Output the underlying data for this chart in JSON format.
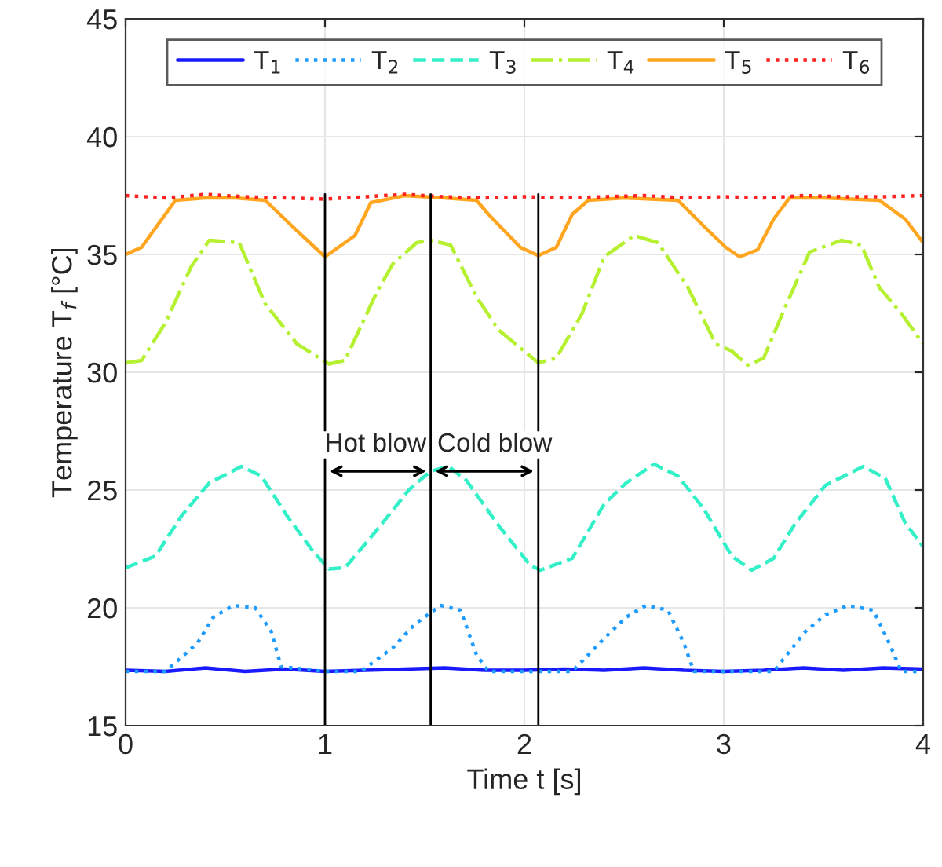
{
  "chart_data": {
    "type": "line",
    "xlabel": "Time t [s]",
    "ylabel": "Temperature T$_{f}$ [°C]",
    "xlim": [
      0,
      4
    ],
    "ylim": [
      15,
      45
    ],
    "xticks": [
      0,
      1,
      2,
      3,
      4
    ],
    "yticks": [
      15,
      20,
      25,
      30,
      35,
      40,
      45
    ],
    "grid": true,
    "legend": "top",
    "marker": "none",
    "series": [
      {
        "name": "T$_{1}$",
        "color": "#1a1aff",
        "line_style": "solid",
        "x": [
          0,
          0.2,
          0.4,
          0.6,
          0.8,
          1,
          1.2,
          1.4,
          1.6,
          1.8,
          2,
          2.2,
          2.4,
          2.6,
          2.8,
          3,
          3.2,
          3.4,
          3.6,
          3.8,
          4
        ],
        "values": [
          17.35,
          17.3,
          17.45,
          17.3,
          17.4,
          17.3,
          17.35,
          17.4,
          17.45,
          17.35,
          17.35,
          17.4,
          17.35,
          17.45,
          17.35,
          17.3,
          17.35,
          17.45,
          17.35,
          17.45,
          17.4
        ]
      },
      {
        "name": "T$_{2}$",
        "color": "#1e9bff",
        "line_style": "dotted",
        "x": [
          0,
          0.2,
          0.36,
          0.44,
          0.54,
          0.65,
          0.73,
          0.78,
          1,
          1.18,
          1.34,
          1.45,
          1.58,
          1.68,
          1.76,
          1.82,
          2.0,
          2.24,
          2.4,
          2.51,
          2.61,
          2.72,
          2.8,
          2.85,
          3.0,
          3.25,
          3.41,
          3.51,
          3.62,
          3.75,
          3.83,
          3.89,
          4
        ],
        "values": [
          17.3,
          17.3,
          18.5,
          19.6,
          20.1,
          20.0,
          19.0,
          17.5,
          17.3,
          17.3,
          18.3,
          19.3,
          20.1,
          19.9,
          18.0,
          17.3,
          17.3,
          17.3,
          18.7,
          19.6,
          20.1,
          19.9,
          18.5,
          17.3,
          17.3,
          17.3,
          19.0,
          19.7,
          20.1,
          19.9,
          18.5,
          17.3,
          17.3
        ]
      },
      {
        "name": "T$_{3}$",
        "color": "#33f0c8",
        "line_style": "dashed",
        "x": [
          0,
          0.15,
          0.28,
          0.42,
          0.58,
          0.68,
          0.81,
          0.94,
          1.02,
          1.1,
          1.26,
          1.42,
          1.53,
          1.62,
          1.71,
          1.87,
          2.03,
          2.08,
          2.24,
          2.4,
          2.51,
          2.65,
          2.77,
          2.9,
          3.04,
          3.14,
          3.25,
          3.36,
          3.51,
          3.7,
          3.81,
          3.91,
          4
        ],
        "values": [
          21.7,
          22.2,
          23.9,
          25.3,
          26.0,
          25.6,
          23.9,
          22.4,
          21.65,
          21.7,
          23.3,
          25.0,
          25.8,
          26.0,
          25.4,
          23.5,
          21.8,
          21.6,
          22.1,
          24.4,
          25.3,
          26.1,
          25.6,
          24.2,
          22.2,
          21.6,
          22.1,
          23.6,
          25.2,
          26.0,
          25.5,
          23.6,
          22.6
        ]
      },
      {
        "name": "T$_{4}$",
        "color": "#b5f031",
        "line_style": "dashdot",
        "x": [
          0,
          0.08,
          0.2,
          0.33,
          0.42,
          0.57,
          0.7,
          0.86,
          1.02,
          1.1,
          1.26,
          1.34,
          1.46,
          1.53,
          1.63,
          1.76,
          1.87,
          2.07,
          2.16,
          2.29,
          2.4,
          2.55,
          2.67,
          2.82,
          2.96,
          3.04,
          3.12,
          3.2,
          3.3,
          3.43,
          3.59,
          3.69,
          3.78,
          3.89,
          4
        ],
        "values": [
          30.4,
          30.5,
          32.1,
          34.5,
          35.6,
          35.5,
          32.9,
          31.2,
          30.35,
          30.5,
          33.4,
          34.6,
          35.5,
          35.6,
          35.4,
          33.2,
          31.8,
          30.4,
          30.6,
          32.5,
          34.9,
          35.8,
          35.5,
          33.6,
          31.2,
          30.9,
          30.3,
          30.6,
          32.6,
          35.1,
          35.6,
          35.4,
          33.6,
          32.5,
          31.2
        ]
      },
      {
        "name": "T$_{5}$",
        "color": "#ffa51f",
        "line_style": "solid",
        "x": [
          0,
          0.08,
          0.25,
          0.4,
          0.55,
          0.7,
          0.86,
          1.0,
          1.15,
          1.23,
          1.4,
          1.6,
          1.76,
          1.82,
          1.9,
          1.98,
          2.07,
          2.16,
          2.24,
          2.32,
          2.5,
          2.77,
          2.9,
          3.01,
          3.08,
          3.17,
          3.25,
          3.33,
          3.5,
          3.78,
          3.91,
          4
        ],
        "values": [
          35.0,
          35.3,
          37.3,
          37.4,
          37.4,
          37.3,
          36.0,
          34.9,
          35.8,
          37.2,
          37.5,
          37.4,
          37.3,
          36.7,
          36.0,
          35.3,
          34.95,
          35.3,
          36.7,
          37.3,
          37.4,
          37.3,
          36.2,
          35.3,
          34.9,
          35.2,
          36.5,
          37.4,
          37.4,
          37.3,
          36.5,
          35.5
        ]
      },
      {
        "name": "T$_{6}$",
        "color": "#ff2020",
        "line_style": "dotted",
        "x": [
          0,
          0.2,
          0.4,
          0.6,
          0.8,
          1,
          1.2,
          1.4,
          1.6,
          1.8,
          2,
          2.2,
          2.4,
          2.6,
          2.8,
          3,
          3.2,
          3.4,
          3.6,
          3.8,
          4
        ],
        "values": [
          37.5,
          37.4,
          37.55,
          37.45,
          37.4,
          37.35,
          37.45,
          37.55,
          37.45,
          37.4,
          37.45,
          37.4,
          37.45,
          37.5,
          37.4,
          37.45,
          37.4,
          37.5,
          37.45,
          37.45,
          37.5
        ]
      }
    ],
    "ref_lines": [
      {
        "axis": "x",
        "value": 1.0,
        "color": "#000000"
      },
      {
        "axis": "x",
        "value": 1.53,
        "color": "#000000"
      },
      {
        "axis": "x",
        "value": 2.07,
        "color": "#000000"
      }
    ],
    "annotations": [
      "Hot blow",
      "Cold blow"
    ]
  }
}
